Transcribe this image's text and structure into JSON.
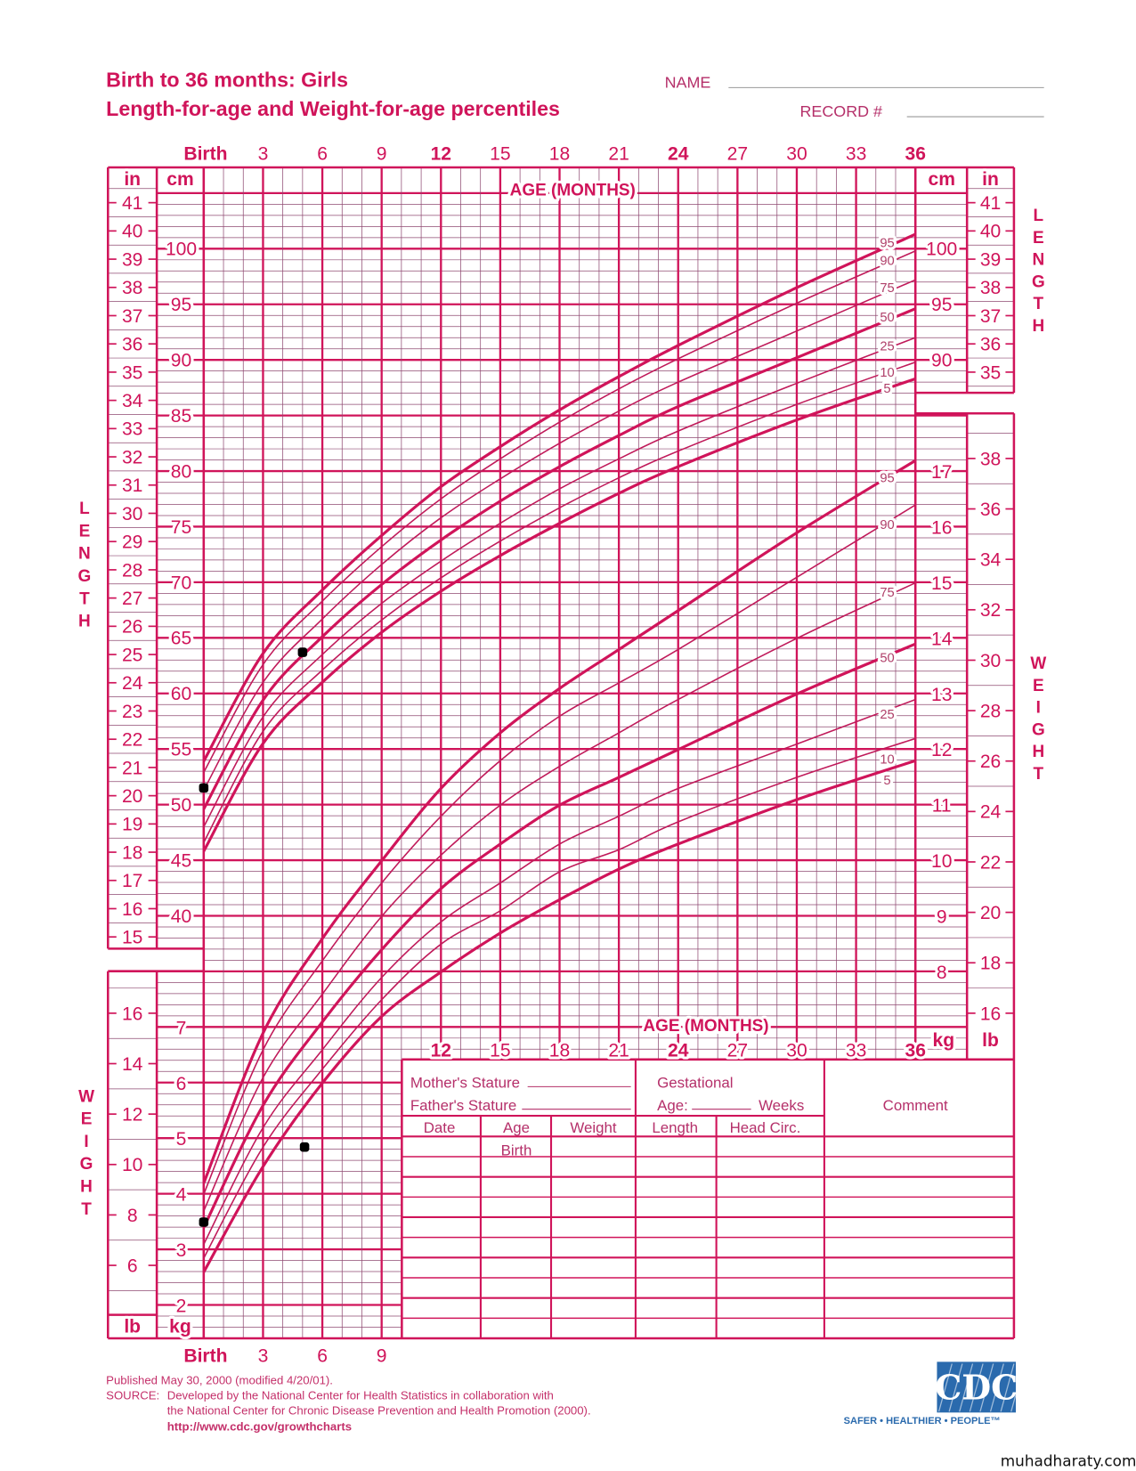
{
  "header": {
    "title_line1": "Birth to 36 months: Girls",
    "title_line2": "Length-for-age and Weight-for-age percentiles",
    "name_label": "NAME",
    "record_label": "RECORD #"
  },
  "axes": {
    "age_title": "AGE (MONTHS)",
    "age_ticks": [
      "Birth",
      "3",
      "6",
      "9",
      "12",
      "15",
      "18",
      "21",
      "24",
      "27",
      "30",
      "33",
      "36"
    ],
    "age_ticks_bottom_left": [
      "Birth",
      "3",
      "6",
      "9"
    ],
    "age_ticks_mid": [
      "12",
      "15",
      "18",
      "21",
      "24",
      "27",
      "30",
      "33",
      "36"
    ],
    "in_label": "in",
    "cm_label": "cm",
    "kg_label": "kg",
    "lb_label": "lb",
    "length_side_label": "LENGTH",
    "weight_side_label": "WEIGHT",
    "in_left": [
      15,
      16,
      17,
      18,
      19,
      20,
      21,
      22,
      23,
      24,
      25,
      26,
      27,
      28,
      29,
      30,
      31,
      32,
      33,
      34,
      35,
      36,
      37,
      38,
      39,
      40,
      41
    ],
    "in_right": [
      35,
      36,
      37,
      38,
      39,
      40,
      41
    ],
    "cm_left": [
      40,
      45,
      50,
      55,
      60,
      65,
      70,
      75,
      80,
      85,
      90,
      95,
      100
    ],
    "cm_right": [
      90,
      95,
      100
    ],
    "kg_left": [
      2,
      3,
      4,
      5,
      6,
      7
    ],
    "kg_right": [
      8,
      9,
      10,
      11,
      12,
      13,
      14,
      15,
      16,
      17
    ],
    "lb_left": [
      6,
      8,
      10,
      12,
      14,
      16
    ],
    "lb_right": [
      16,
      18,
      20,
      22,
      24,
      26,
      28,
      30,
      32,
      34,
      36,
      38
    ]
  },
  "table": {
    "mothers_stature": "Mother's Stature",
    "fathers_stature": "Father's Stature",
    "gestational": "Gestational",
    "age_label": "Age:",
    "weeks": "Weeks",
    "comment": "Comment",
    "columns": [
      "Date",
      "Age",
      "Weight",
      "Length",
      "Head  Circ."
    ],
    "first_row_age": "Birth"
  },
  "footer": {
    "published": "Published May 30, 2000 (modified 4/20/01).",
    "source_label": "SOURCE:",
    "source_line1": "Developed by the National Center for Health Statistics in collaboration with",
    "source_line2": "the National Center for Chronic Disease Prevention and Health Promotion (2000).",
    "url": "http://www.cdc.gov/growthcharts"
  },
  "logo": {
    "text": "CDC",
    "tagline": "SAFER • HEALTHIER • PEOPLE™"
  },
  "watermark": "muhadharaty.com",
  "colors": {
    "primary": "#d0145a",
    "grid_minor": "#8f4a72",
    "curve_thin": "#c01a5a",
    "dot": "#000000",
    "logo_blue": "#2a6aad"
  },
  "chart_data": {
    "type": "line",
    "title": "Birth to 36 months: Girls — Length-for-age and Weight-for-age percentiles",
    "xlabel": "AGE (MONTHS)",
    "x": [
      0,
      3,
      6,
      9,
      12,
      15,
      18,
      21,
      24,
      30,
      36
    ],
    "xlim": [
      0,
      36
    ],
    "grid": true,
    "percentile_labels": [
      "95",
      "90",
      "75",
      "50",
      "25",
      "10",
      "5"
    ],
    "length": {
      "ylabel": "LENGTH (cm)",
      "ylim": [
        40,
        105
      ],
      "series": [
        {
          "name": "95",
          "values": [
            53.9,
            63.6,
            69.3,
            74.2,
            78.6,
            82.2,
            85.5,
            88.5,
            91.3,
            96.5,
            101.3
          ]
        },
        {
          "name": "90",
          "values": [
            52.9,
            62.6,
            68.3,
            73.2,
            77.5,
            81.1,
            84.4,
            87.4,
            90.1,
            95.1,
            99.8
          ]
        },
        {
          "name": "75",
          "values": [
            51.3,
            61.0,
            66.7,
            71.6,
            75.8,
            79.3,
            82.5,
            85.4,
            88.0,
            92.6,
            97.2
          ]
        },
        {
          "name": "50",
          "values": [
            49.6,
            59.4,
            65.1,
            69.8,
            73.8,
            77.3,
            80.4,
            83.2,
            85.8,
            90.2,
            94.6
          ]
        },
        {
          "name": "25",
          "values": [
            48.0,
            57.9,
            63.5,
            68.1,
            71.9,
            75.3,
            78.4,
            81.1,
            83.6,
            87.9,
            92.0
          ]
        },
        {
          "name": "10",
          "values": [
            46.6,
            56.6,
            62.1,
            66.6,
            70.4,
            73.7,
            76.7,
            79.4,
            81.8,
            86.0,
            89.8
          ]
        },
        {
          "name": "5",
          "values": [
            45.8,
            55.5,
            61.0,
            65.5,
            69.2,
            72.4,
            75.3,
            78.0,
            80.4,
            84.6,
            88.3
          ]
        }
      ],
      "observations": [
        {
          "age": 0,
          "value": 51.5
        },
        {
          "age": 5,
          "value": 63.7
        }
      ]
    },
    "weight": {
      "ylabel": "WEIGHT (kg)",
      "ylim": [
        1.4,
        18
      ],
      "series": [
        {
          "name": "95",
          "values": [
            4.2,
            6.9,
            8.6,
            10.0,
            11.3,
            12.3,
            13.1,
            13.8,
            14.5,
            15.9,
            17.2
          ]
        },
        {
          "name": "90",
          "values": [
            4.0,
            6.6,
            8.2,
            9.6,
            10.8,
            11.8,
            12.6,
            13.2,
            13.8,
            15.1,
            16.4
          ]
        },
        {
          "name": "75",
          "values": [
            3.7,
            6.1,
            7.6,
            9.0,
            10.1,
            11.0,
            11.7,
            12.3,
            12.9,
            14.0,
            15.0
          ]
        },
        {
          "name": "50",
          "values": [
            3.4,
            5.6,
            7.1,
            8.4,
            9.5,
            10.3,
            11.0,
            11.5,
            12.0,
            13.0,
            13.9
          ]
        },
        {
          "name": "25",
          "values": [
            3.1,
            5.2,
            6.6,
            7.9,
            8.9,
            9.6,
            10.3,
            10.8,
            11.3,
            12.1,
            12.9
          ]
        },
        {
          "name": "10",
          "values": [
            2.85,
            4.85,
            6.25,
            7.5,
            8.5,
            9.1,
            9.8,
            10.2,
            10.7,
            11.5,
            12.2
          ]
        },
        {
          "name": "5",
          "values": [
            2.6,
            4.5,
            6.0,
            7.2,
            8.0,
            8.7,
            9.3,
            9.85,
            10.3,
            11.1,
            11.8
          ]
        }
      ],
      "observations": [
        {
          "age": 0,
          "value": 3.5
        },
        {
          "age": 5.1,
          "value": 4.85
        }
      ]
    }
  }
}
